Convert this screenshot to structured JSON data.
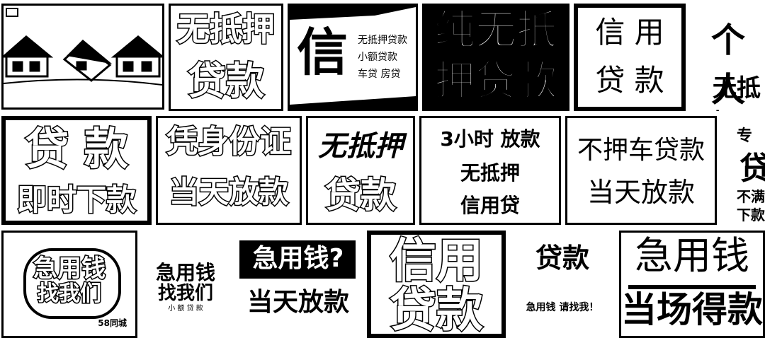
{
  "palette": {
    "ink": "#000000",
    "paper": "#ffffff"
  },
  "row1": {
    "t1": {
      "icon": "house-icon",
      "corner_icon": "tag-icon"
    },
    "t2": {
      "line1": "无抵押",
      "line2": "贷款"
    },
    "t3": {
      "big": "信",
      "lines": [
        "无抵押贷款",
        "小额贷款",
        "车贷  房贷"
      ]
    },
    "t4": {
      "line1": "纯无抵",
      "line2": "押贷款"
    },
    "t5": {
      "line1": "信  用",
      "line2": "贷  款"
    },
    "t6": {
      "line1": "个人",
      "line2": "无抵押"
    }
  },
  "row2": {
    "t1": {
      "line1": "贷 款",
      "line2": "即时下款"
    },
    "t2": {
      "line1": "凭身份证",
      "line2": "当天放款"
    },
    "t3": {
      "line1": "无抵押",
      "line2": "贷款"
    },
    "t4": {
      "line1": "3小时 放款",
      "line2": "无抵押",
      "line3": "信用贷"
    },
    "t5": {
      "line1": "不押车贷款",
      "line2": "当天放款"
    },
    "t6": {
      "line1": "专",
      "line2": "贷",
      "line3": "不满",
      "line4": "下款"
    }
  },
  "row3": {
    "t1": {
      "line1": "急用钱",
      "line2": "找我们",
      "footer": "58同城"
    },
    "t2": {
      "line1": "急用钱",
      "line2": "找我们",
      "line3": "小 额 贷 款"
    },
    "t3": {
      "line1": "急用钱?",
      "line2": "当天放款"
    },
    "t4": {
      "line1": "信用",
      "line2": "贷款"
    },
    "t5": {
      "line1": "贷款",
      "line2": "急用钱 请找我！"
    },
    "t6": {
      "line1": "急用钱",
      "line2": "当场得款"
    }
  }
}
